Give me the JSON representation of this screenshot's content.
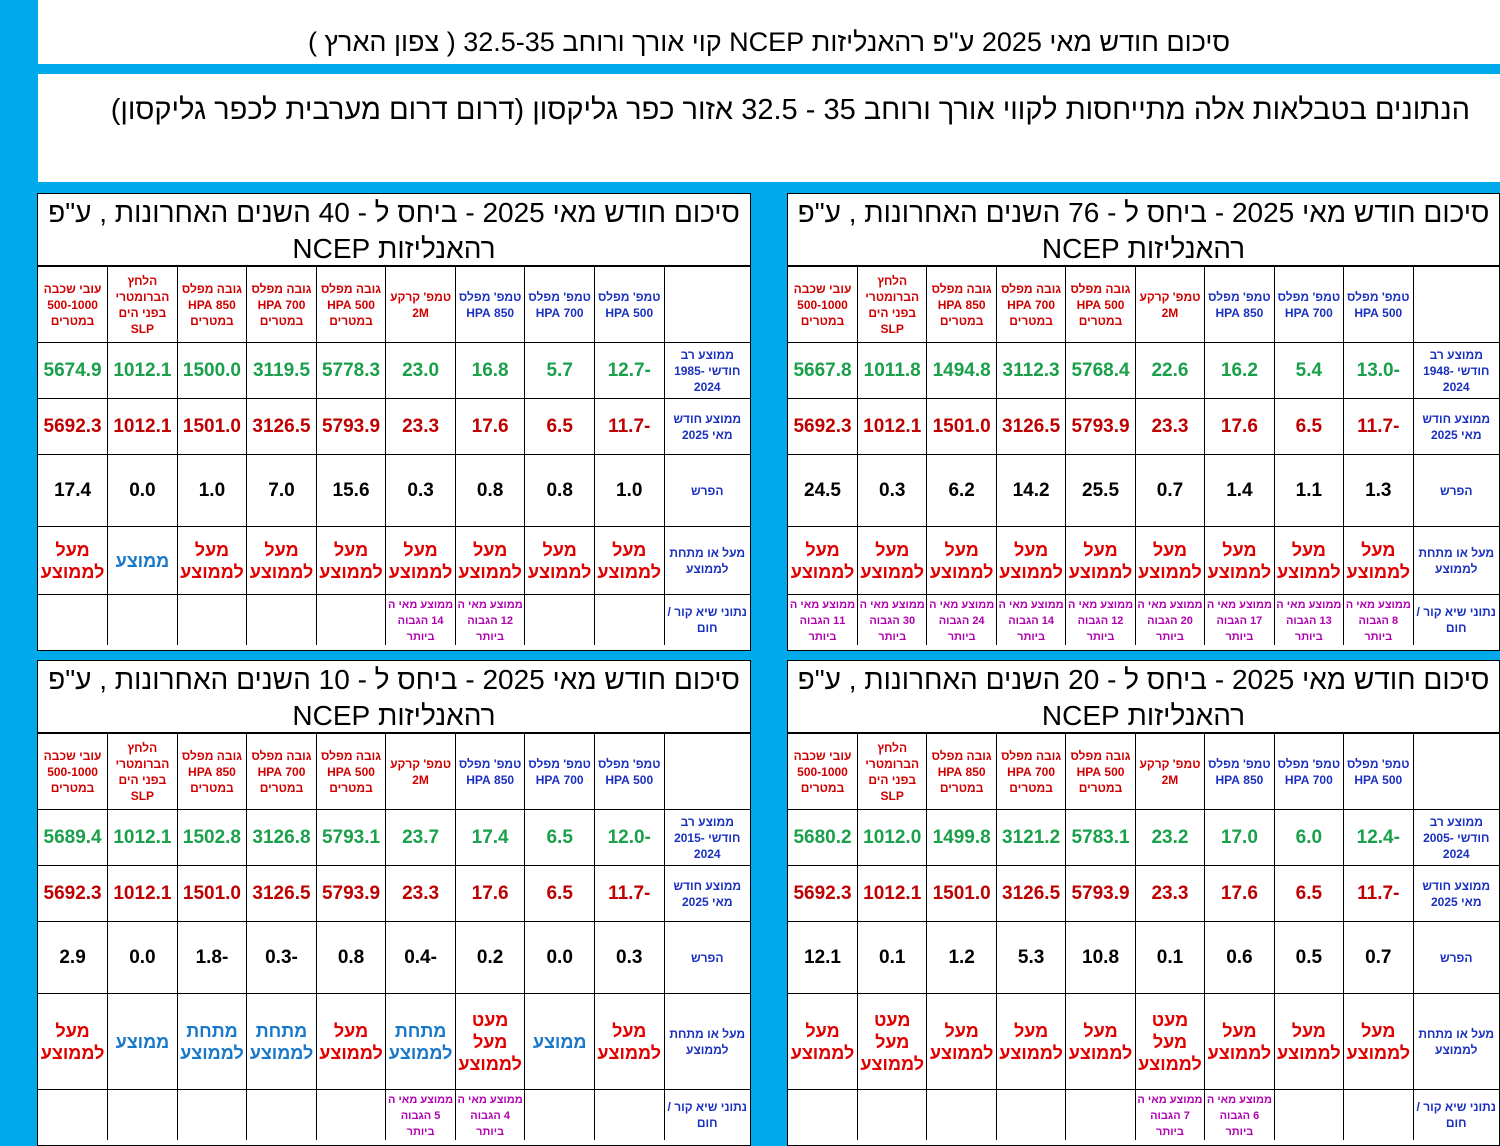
{
  "title": "סיכום חודש מאי 2025 ע\"פ רהאנליזות NCEP קוי אורך ורוחב 32.5-35 ( צפון הארץ )",
  "subtitle": "הנתונים בטבלאות אלה מתייחסות לקווי אורך ורוחב 35 - 32.5     אזור כפר  גליקסון  (דרום דרום מערבית לכפר גליקסון)",
  "colors": {
    "frame": "#00a9ea",
    "avg_values": "#1aa04a",
    "current_values": "#c00000",
    "above": "#e00000",
    "average": "#1a78c8",
    "record_notes": "#b000b0",
    "row_headers": "#1a30c0"
  },
  "columns": [
    "טמפ' מפלס 500 HPA",
    "טמפ' מפלס 700 HPA",
    "טמפ' מפלס 850 HPA",
    "טמפ' קרקע 2M",
    "גובה מפלס 500 HPA במטרים",
    "גובה מפלס 700 HPA במטרים",
    "גובה מפלס 850 HPA במטרים",
    "הלחץ הברומטרי בפני הים SLP",
    "עובי שכבה 500-1000 במטרים"
  ],
  "panels": [
    {
      "id": "p76",
      "title": "סיכום חודש מאי 2025  - ביחס ל - 76 השנים האחרונות , ע\"פ רהאנליזות NCEP",
      "row_labels": [
        "ממוצע רב חודשי 1948-2024",
        "ממוצע חודש מאי 2025",
        "הפרש",
        "מעל או מתחת לממוצע",
        "נתוני שיא קור / חום"
      ],
      "avg": [
        "-13.0",
        "5.4",
        "16.2",
        "22.6",
        "5768.4",
        "3112.3",
        "1494.8",
        "1011.8",
        "5667.8"
      ],
      "cur": [
        "-11.7",
        "6.5",
        "17.6",
        "23.3",
        "5793.9",
        "3126.5",
        "1501.0",
        "1012.1",
        "5692.3"
      ],
      "diff": [
        "1.3",
        "1.1",
        "1.4",
        "0.7",
        "25.5",
        "14.2",
        "6.2",
        "0.3",
        "24.5"
      ],
      "status": [
        "מעל לממוצע",
        "מעל לממוצע",
        "מעל לממוצע",
        "מעל לממוצע",
        "מעל לממוצע",
        "מעל לממוצע",
        "מעל לממוצע",
        "מעל לממוצע",
        "מעל לממוצע"
      ],
      "status_kind": [
        "above",
        "above",
        "above",
        "above",
        "above",
        "above",
        "above",
        "above",
        "above"
      ],
      "records": [
        "ממוצע מאי ה 8 הגבוה ביותר",
        "ממוצע מאי ה 13 הגבוה ביותר",
        "ממוצע מאי ה 17 הגבוה ביותר",
        "ממוצע מאי ה 20 הגבוה ביותר",
        "ממוצע מאי ה 12 הגבוה ביותר",
        "ממוצע מאי ה 14 הגבוה ביותר",
        "ממוצע מאי ה 24 הגבוה ביותר",
        "ממוצע מאי ה 30 הגבוה ביותר",
        "ממוצע מאי ה 11 הגבוה ביותר"
      ]
    },
    {
      "id": "p40",
      "title": "סיכום חודש מאי 2025  - ביחס ל - 40 השנים האחרונות , ע\"פ רהאנליזות NCEP",
      "row_labels": [
        "ממוצע רב חודשי 1985-2024",
        "ממוצע חודש מאי 2025",
        "הפרש",
        "מעל או מתחת לממוצע",
        "נתוני שיא קור / חום"
      ],
      "avg": [
        "-12.7",
        "5.7",
        "16.8",
        "23.0",
        "5778.3",
        "3119.5",
        "1500.0",
        "1012.1",
        "5674.9"
      ],
      "cur": [
        "-11.7",
        "6.5",
        "17.6",
        "23.3",
        "5793.9",
        "3126.5",
        "1501.0",
        "1012.1",
        "5692.3"
      ],
      "diff": [
        "1.0",
        "0.8",
        "0.8",
        "0.3",
        "15.6",
        "7.0",
        "1.0",
        "0.0",
        "17.4"
      ],
      "status": [
        "מעל לממוצע",
        "מעל לממוצע",
        "מעל לממוצע",
        "מעל לממוצע",
        "מעל לממוצע",
        "מעל לממוצע",
        "מעל לממוצע",
        "ממוצע",
        "מעל לממוצע"
      ],
      "status_kind": [
        "above",
        "above",
        "above",
        "above",
        "above",
        "above",
        "above",
        "avg",
        "above"
      ],
      "records": [
        "",
        "",
        "ממוצע מאי ה 12 הגבוה ביותר",
        "ממוצע מאי ה 14 הגבוה ביותר",
        "",
        "",
        "",
        "",
        ""
      ]
    },
    {
      "id": "p20",
      "title": "סיכום חודש מאי 2025  - ביחס ל - 20 השנים האחרונות , ע\"פ רהאנליזות NCEP",
      "row_labels": [
        "ממוצע רב חודשי 2005-2024",
        "ממוצע חודש מאי 2025",
        "הפרש",
        "מעל או מתחת לממוצע",
        "נתוני שיא קור / חום"
      ],
      "avg": [
        "-12.4",
        "6.0",
        "17.0",
        "23.2",
        "5783.1",
        "3121.2",
        "1499.8",
        "1012.0",
        "5680.2"
      ],
      "cur": [
        "-11.7",
        "6.5",
        "17.6",
        "23.3",
        "5793.9",
        "3126.5",
        "1501.0",
        "1012.1",
        "5692.3"
      ],
      "diff": [
        "0.7",
        "0.5",
        "0.6",
        "0.1",
        "10.8",
        "5.3",
        "1.2",
        "0.1",
        "12.1"
      ],
      "status": [
        "מעל לממוצע",
        "מעל לממוצע",
        "מעל לממוצע",
        "מעט מעל לממוצע",
        "מעל לממוצע",
        "מעל לממוצע",
        "מעל לממוצע",
        "מעט מעל לממוצע",
        "מעל לממוצע"
      ],
      "status_kind": [
        "above",
        "above",
        "above",
        "above",
        "above",
        "above",
        "above",
        "above",
        "above"
      ],
      "records": [
        "",
        "",
        "ממוצע מאי ה 6 הגבוה ביותר",
        "ממוצע מאי ה 7 הגבוה ביותר",
        "",
        "",
        "",
        "",
        ""
      ]
    },
    {
      "id": "p10",
      "title": "סיכום חודש מאי 2025  - ביחס ל - 10 השנים האחרונות , ע\"פ רהאנליזות NCEP",
      "row_labels": [
        "ממוצע רב חודשי 2015-2024",
        "ממוצע חודש מאי 2025",
        "הפרש",
        "מעל או מתחת לממוצע",
        "נתוני שיא קור / חום"
      ],
      "avg": [
        "-12.0",
        "6.5",
        "17.4",
        "23.7",
        "5793.1",
        "3126.8",
        "1502.8",
        "1012.1",
        "5689.4"
      ],
      "cur": [
        "-11.7",
        "6.5",
        "17.6",
        "23.3",
        "5793.9",
        "3126.5",
        "1501.0",
        "1012.1",
        "5692.3"
      ],
      "diff": [
        "0.3",
        "0.0",
        "0.2",
        "-0.4",
        "0.8",
        "-0.3",
        "-1.8",
        "0.0",
        "2.9"
      ],
      "status": [
        "מעל לממוצע",
        "ממוצע",
        "מעט מעל לממוצע",
        "מתחת לממוצע",
        "מעל לממוצע",
        "מתחת לממוצע",
        "מתחת לממוצע",
        "ממוצע",
        "מעל לממוצע"
      ],
      "status_kind": [
        "above",
        "avg",
        "above",
        "below",
        "above",
        "below",
        "below",
        "avg",
        "above"
      ],
      "records": [
        "",
        "",
        "ממוצע מאי ה 4 הגבוה ביותר",
        "ממוצע מאי ה 5 הגבוה ביותר",
        "",
        "",
        "",
        "",
        ""
      ]
    }
  ]
}
